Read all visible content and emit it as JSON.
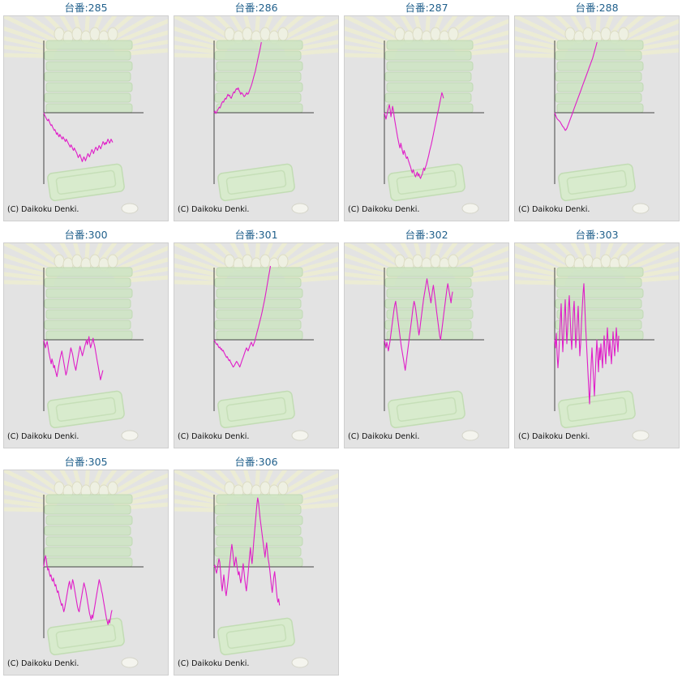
{
  "colors": {
    "title": "#1f5f8b",
    "line": "#e01ec8",
    "axis": "#444444",
    "panel_bg": "#e3e3e3"
  },
  "chart_data": [
    {
      "type": "line",
      "title": "台番:285",
      "copyright": "(C) Daikoku Denki.",
      "grid": false,
      "y": [
        0,
        -3,
        -5,
        -7,
        -9,
        -10,
        -8,
        -11,
        -14,
        -16,
        -15,
        -18,
        -20,
        -22,
        -21,
        -24,
        -27,
        -25,
        -28,
        -30,
        -27,
        -29,
        -31,
        -33,
        -30,
        -32,
        -34,
        -36,
        -33,
        -35,
        -37,
        -39,
        -41,
        -43,
        -40,
        -42,
        -45,
        -47,
        -44,
        -46,
        -48,
        -50,
        -53,
        -56,
        -54,
        -52,
        -55,
        -58,
        -61,
        -58,
        -55,
        -57,
        -60,
        -57,
        -54,
        -51,
        -53,
        -55,
        -52,
        -49,
        -46,
        -48,
        -51,
        -48,
        -45,
        -43,
        -45,
        -47,
        -44,
        -41,
        -43,
        -45,
        -42,
        -39,
        -36,
        -38,
        -40,
        -37,
        -39,
        -36,
        -33,
        -35,
        -38,
        -36,
        -33,
        -35,
        -37
      ]
    },
    {
      "type": "line",
      "title": "台番:286",
      "copyright": "(C) Daikoku Denki.",
      "grid": false,
      "y": [
        0,
        2,
        -1,
        1,
        3,
        5,
        7,
        6,
        9,
        12,
        14,
        13,
        16,
        18,
        17,
        20,
        23,
        21,
        22,
        19,
        18,
        21,
        24,
        26,
        25,
        28,
        30,
        29,
        31,
        28,
        26,
        23,
        25,
        24,
        22,
        20,
        21,
        23,
        25,
        23,
        24,
        27,
        30,
        33,
        36,
        40,
        44,
        48,
        52,
        57,
        62,
        67,
        72,
        77,
        82,
        88
      ]
    },
    {
      "type": "line",
      "title": "台番:287",
      "copyright": "(C) Daikoku Denki.",
      "grid": false,
      "y": [
        0,
        -4,
        -8,
        -3,
        2,
        6,
        10,
        4,
        -5,
        1,
        8,
        3,
        -6,
        -12,
        -18,
        -24,
        -30,
        -35,
        -40,
        -44,
        -38,
        -43,
        -48,
        -52,
        -47,
        -50,
        -54,
        -57,
        -55,
        -59,
        -62,
        -65,
        -68,
        -72,
        -75,
        -71,
        -74,
        -78,
        -80,
        -77,
        -74,
        -79,
        -76,
        -80,
        -82,
        -79,
        -77,
        -73,
        -69,
        -72,
        -68,
        -65,
        -61,
        -57,
        -53,
        -48,
        -44,
        -40,
        -35,
        -30,
        -25,
        -20,
        -15,
        -10,
        -5,
        0,
        5,
        10,
        15,
        20,
        25,
        22,
        18
      ]
    },
    {
      "type": "line",
      "title": "台番:288",
      "copyright": "(C) Daikoku Denki.",
      "grid": false,
      "y": [
        0,
        -3,
        -6,
        -8,
        -9,
        -10,
        -11,
        -13,
        -15,
        -17,
        -18,
        -20,
        -22,
        -21,
        -19,
        -16,
        -13,
        -10,
        -7,
        -4,
        -1,
        2,
        5,
        8,
        11,
        14,
        17,
        20,
        23,
        26,
        29,
        32,
        35,
        38,
        41,
        44,
        47,
        50,
        53,
        56,
        59,
        62,
        65,
        68,
        72,
        76,
        80,
        84,
        88
      ]
    },
    {
      "type": "line",
      "title": "台番:300",
      "copyright": "(C) Daikoku Denki.",
      "grid": false,
      "y": [
        0,
        -5,
        -10,
        -6,
        -2,
        -8,
        -15,
        -20,
        -25,
        -30,
        -24,
        -28,
        -35,
        -32,
        -38,
        -42,
        -46,
        -40,
        -34,
        -28,
        -22,
        -18,
        -14,
        -20,
        -26,
        -32,
        -38,
        -44,
        -40,
        -34,
        -28,
        -22,
        -16,
        -10,
        -14,
        -18,
        -24,
        -30,
        -34,
        -38,
        -32,
        -26,
        -20,
        -14,
        -8,
        -12,
        -16,
        -20,
        -16,
        -12,
        -8,
        -4,
        0,
        -6,
        -2,
        4,
        -4,
        -10,
        -6,
        -2,
        2,
        -4,
        -8,
        -14,
        -20,
        -26,
        -32,
        -38,
        -44,
        -50,
        -46,
        -42,
        -38
      ]
    },
    {
      "type": "line",
      "title": "台番:301",
      "copyright": "(C) Daikoku Denki.",
      "grid": false,
      "y": [
        0,
        -2,
        -4,
        -6,
        -5,
        -8,
        -10,
        -9,
        -12,
        -11,
        -14,
        -13,
        -16,
        -18,
        -20,
        -22,
        -21,
        -24,
        -26,
        -25,
        -28,
        -30,
        -32,
        -34,
        -33,
        -31,
        -29,
        -27,
        -28,
        -30,
        -32,
        -34,
        -31,
        -28,
        -25,
        -22,
        -19,
        -16,
        -13,
        -10,
        -12,
        -14,
        -11,
        -8,
        -5,
        -3,
        -6,
        -8,
        -5,
        -2,
        2,
        6,
        10,
        14,
        18,
        22,
        26,
        30,
        35,
        40,
        45,
        50,
        56,
        62,
        68,
        74,
        80,
        86,
        92
      ]
    },
    {
      "type": "line",
      "title": "台番:302",
      "copyright": "(C) Daikoku Denki.",
      "grid": false,
      "y": [
        0,
        -5,
        -10,
        -3,
        -8,
        -14,
        -8,
        -2,
        6,
        14,
        22,
        30,
        38,
        44,
        48,
        40,
        32,
        24,
        16,
        8,
        0,
        -8,
        -14,
        -20,
        -26,
        -32,
        -38,
        -30,
        -22,
        -14,
        -6,
        2,
        10,
        18,
        26,
        34,
        42,
        48,
        44,
        38,
        30,
        22,
        14,
        6,
        12,
        20,
        28,
        36,
        44,
        52,
        58,
        64,
        70,
        76,
        70,
        64,
        58,
        52,
        46,
        54,
        62,
        68,
        60,
        52,
        44,
        36,
        28,
        20,
        12,
        4,
        0,
        8,
        16,
        24,
        32,
        40,
        48,
        56,
        64,
        70,
        64,
        58,
        52,
        46,
        54,
        60
      ]
    },
    {
      "type": "line",
      "title": "台番:303",
      "copyright": "(C) Daikoku Denki.",
      "grid": false,
      "y": [
        0,
        -10,
        8,
        -18,
        -35,
        -20,
        2,
        25,
        45,
        10,
        -15,
        5,
        30,
        50,
        20,
        -5,
        15,
        40,
        55,
        30,
        5,
        -12,
        10,
        35,
        48,
        20,
        -10,
        5,
        25,
        42,
        10,
        -20,
        -5,
        20,
        40,
        58,
        70,
        45,
        20,
        0,
        -20,
        -40,
        -60,
        -80,
        -55,
        -30,
        -10,
        -30,
        -50,
        -70,
        -45,
        -20,
        0,
        -20,
        -40,
        -10,
        -25,
        -5,
        -20,
        -35,
        -10,
        5,
        -15,
        -30,
        -5,
        15,
        -5,
        -20,
        0,
        -15,
        -30,
        -10,
        10,
        -5,
        -20,
        -5,
        15,
        0,
        -15,
        5
      ]
    },
    {
      "type": "line",
      "title": "台番:305",
      "copyright": "(C) Daikoku Denki.",
      "grid": false,
      "y": [
        0,
        8,
        14,
        10,
        2,
        -4,
        -2,
        -8,
        -12,
        -10,
        -16,
        -18,
        -14,
        -20,
        -24,
        -22,
        -28,
        -32,
        -30,
        -36,
        -40,
        -44,
        -48,
        -46,
        -52,
        -56,
        -52,
        -46,
        -40,
        -34,
        -28,
        -22,
        -18,
        -24,
        -28,
        -22,
        -16,
        -20,
        -26,
        -32,
        -38,
        -44,
        -50,
        -54,
        -56,
        -50,
        -44,
        -38,
        -32,
        -26,
        -20,
        -24,
        -28,
        -34,
        -40,
        -46,
        -52,
        -58,
        -62,
        -66,
        -60,
        -64,
        -58,
        -52,
        -46,
        -40,
        -34,
        -28,
        -22,
        -16,
        -20,
        -24,
        -30,
        -34,
        -40,
        -46,
        -52,
        -58,
        -64,
        -68,
        -72,
        -66,
        -70,
        -64,
        -58,
        -54
      ]
    },
    {
      "type": "line",
      "title": "台番:306",
      "copyright": "(C) Daikoku Denki.",
      "grid": false,
      "y": [
        0,
        2,
        -4,
        -8,
        -2,
        4,
        10,
        6,
        -6,
        -20,
        -30,
        -20,
        -10,
        -20,
        -30,
        -36,
        -28,
        -20,
        -10,
        0,
        10,
        20,
        28,
        20,
        10,
        0,
        6,
        12,
        4,
        -4,
        -10,
        -6,
        -14,
        -20,
        -14,
        -4,
        4,
        -6,
        -16,
        -24,
        -30,
        -20,
        -10,
        2,
        14,
        24,
        12,
        4,
        16,
        30,
        42,
        54,
        66,
        78,
        86,
        80,
        70,
        60,
        52,
        44,
        36,
        28,
        20,
        12,
        22,
        30,
        20,
        10,
        4,
        -4,
        -14,
        -24,
        -32,
        -22,
        -12,
        -6,
        -16,
        -28,
        -38,
        -44,
        -40,
        -48
      ]
    }
  ]
}
